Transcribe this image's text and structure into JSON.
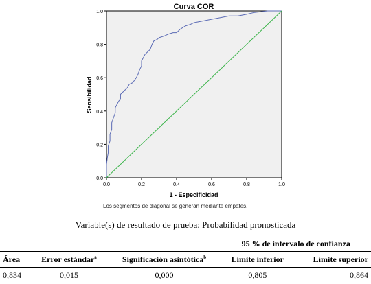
{
  "chart_data": {
    "type": "line",
    "title": "Curva COR",
    "xlabel": "1 - Especificidad",
    "ylabel": "Sensibilidad",
    "xlim": [
      0.0,
      1.0
    ],
    "ylim": [
      0.0,
      1.0
    ],
    "xticks": [
      "0.0",
      "0.2",
      "0.4",
      "0.6",
      "0.8",
      "1.0"
    ],
    "yticks": [
      "0.0",
      "0.2",
      "0.4",
      "0.6",
      "0.8",
      "1.0"
    ],
    "grid": false,
    "series": [
      {
        "color": "#5b6bb5",
        "x": [
          0.0,
          0.0,
          0.005,
          0.01,
          0.01,
          0.02,
          0.02,
          0.03,
          0.03,
          0.04,
          0.05,
          0.05,
          0.06,
          0.07,
          0.08,
          0.08,
          0.1,
          0.12,
          0.13,
          0.15,
          0.17,
          0.18,
          0.19,
          0.2,
          0.2,
          0.21,
          0.22,
          0.23,
          0.25,
          0.26,
          0.27,
          0.29,
          0.3,
          0.33,
          0.35,
          0.38,
          0.4,
          0.42,
          0.45,
          0.48,
          0.5,
          0.55,
          0.6,
          0.65,
          0.7,
          0.75,
          0.8,
          0.84,
          0.88,
          0.92,
          0.96,
          1.0
        ],
        "y": [
          0.0,
          0.08,
          0.12,
          0.15,
          0.19,
          0.22,
          0.26,
          0.29,
          0.33,
          0.36,
          0.39,
          0.42,
          0.44,
          0.46,
          0.47,
          0.5,
          0.52,
          0.54,
          0.56,
          0.57,
          0.6,
          0.62,
          0.65,
          0.67,
          0.7,
          0.72,
          0.74,
          0.75,
          0.77,
          0.8,
          0.82,
          0.83,
          0.84,
          0.85,
          0.86,
          0.87,
          0.87,
          0.89,
          0.91,
          0.92,
          0.93,
          0.94,
          0.95,
          0.96,
          0.97,
          0.97,
          0.98,
          0.99,
          0.995,
          1.0,
          1.0,
          1.0
        ]
      },
      {
        "color": "#3cb44b",
        "x": [
          0.0,
          1.0
        ],
        "y": [
          0.0,
          1.0
        ]
      }
    ],
    "caption": "Los segmentos de diagonal se generan mediante empates."
  },
  "subtitle": "Variable(s) de resultado  de prueba:  Probabilidad  pronosticada",
  "table": {
    "group_header": "95 % de intervalo de confianza",
    "headers": [
      "Área",
      "Error estándar",
      "Significación asintótica",
      "Límite inferior",
      "Límite superior"
    ],
    "header_superscripts": [
      "",
      "a",
      "b",
      "",
      ""
    ],
    "rows": [
      [
        "0,834",
        "0,015",
        "0,000",
        "0,805",
        "0,864"
      ]
    ]
  },
  "colors": {
    "plot_bg": "#f0f0f0",
    "frame": "#000000"
  }
}
